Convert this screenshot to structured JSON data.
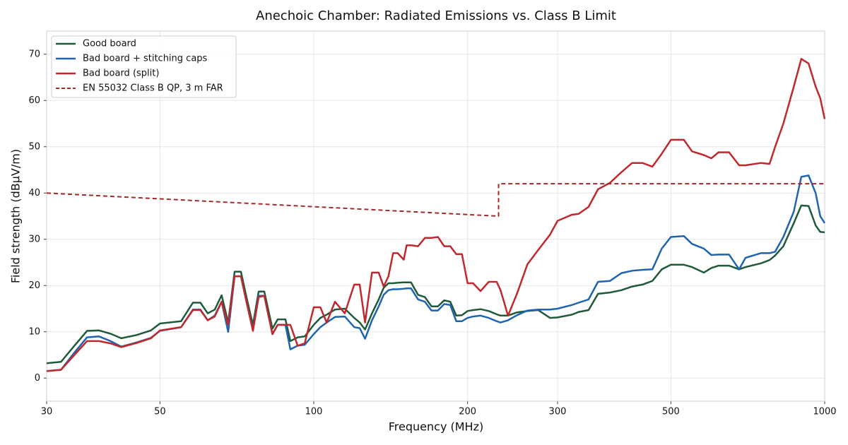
{
  "chart_data": {
    "type": "line",
    "title": "Anechoic Chamber: Radiated Emissions vs. Class B Limit",
    "x_label": "Frequency (MHz)",
    "y_label": "Field strength (dBµV/m)",
    "x_scale": "log",
    "grid": true,
    "legend": "upper left",
    "xlim": [
      30,
      1000
    ],
    "ylim": [
      -5,
      75
    ],
    "xticks": [
      30,
      50,
      100,
      200,
      300,
      500,
      1000
    ],
    "yticks": [
      0,
      10,
      20,
      30,
      40,
      50,
      60,
      70
    ],
    "x": [
      30,
      32,
      34,
      36,
      38,
      40,
      42,
      45,
      48,
      50,
      55,
      58,
      60,
      62,
      64,
      66,
      68,
      70,
      72,
      74,
      76,
      78,
      80,
      83,
      85,
      88,
      90,
      93,
      96,
      100,
      103,
      106,
      110,
      115,
      120,
      123,
      126,
      130,
      134,
      137,
      140,
      143,
      146,
      150,
      152,
      155,
      160,
      165,
      170,
      175,
      180,
      185,
      190,
      195,
      200,
      205,
      212,
      220,
      228,
      232,
      240,
      250,
      262,
      275,
      290,
      300,
      320,
      330,
      345,
      360,
      380,
      400,
      420,
      440,
      460,
      480,
      500,
      530,
      550,
      580,
      600,
      620,
      650,
      680,
      700,
      750,
      780,
      800,
      830,
      870,
      900,
      930,
      960,
      980,
      1000
    ],
    "series": [
      {
        "name": "Good board",
        "color": "#1f5a3a",
        "dashed": false,
        "values": [
          3.2,
          3.5,
          7,
          10.2,
          10.3,
          9.6,
          8.6,
          9.3,
          10.3,
          11.8,
          12.3,
          16.3,
          16.3,
          14,
          14.8,
          17.9,
          12,
          23,
          23,
          17,
          11.5,
          18.7,
          18.7,
          10.7,
          12.7,
          12.7,
          8,
          8.8,
          9,
          11.5,
          13,
          13.7,
          14.8,
          15,
          13,
          12,
          10.5,
          14,
          17,
          19.5,
          20.5,
          20.5,
          20.6,
          20.7,
          20.7,
          20.7,
          18,
          17.5,
          15.5,
          15.5,
          16.8,
          16.5,
          13.5,
          13.6,
          14.5,
          14.7,
          14.9,
          14.5,
          13.8,
          13.5,
          13.5,
          14.2,
          14.5,
          14.7,
          13,
          13.1,
          13.7,
          14.3,
          14.7,
          18.2,
          18.5,
          19,
          19.8,
          20.2,
          21,
          23.5,
          24.5,
          24.5,
          24,
          22.8,
          23.8,
          24.3,
          24.3,
          23.5,
          24,
          24.8,
          25.5,
          26.5,
          28.5,
          33.5,
          37.3,
          37.2,
          33,
          31.6,
          31.5
        ]
      },
      {
        "name": "Bad board + stitching caps",
        "color": "#1f64b0",
        "dashed": false,
        "values": [
          1.5,
          1.8,
          5.5,
          8.8,
          9,
          8,
          6.8,
          7.7,
          8.7,
          10.2,
          11,
          14.8,
          14.8,
          12.5,
          13.5,
          16.5,
          10,
          22,
          22,
          16,
          10.5,
          17.8,
          17.8,
          9.5,
          11.5,
          11.5,
          6.2,
          7,
          7.2,
          9.5,
          11,
          12,
          13.2,
          13.3,
          11,
          10.8,
          8.5,
          12.5,
          15.5,
          18,
          19,
          19.2,
          19.2,
          19.3,
          19.4,
          19.4,
          17,
          16.5,
          14.6,
          14.6,
          16,
          15.8,
          12.3,
          12.3,
          13,
          13.3,
          13.5,
          13,
          12.3,
          12,
          12.5,
          13.6,
          14.6,
          14.8,
          14.8,
          15,
          15.8,
          16.3,
          17,
          20.8,
          21,
          22.7,
          23.2,
          23.4,
          23.5,
          28,
          30.5,
          30.7,
          29,
          28,
          26.6,
          26.7,
          26.7,
          23.5,
          26,
          27,
          27,
          27.3,
          30.5,
          36,
          43.5,
          43.8,
          40,
          35,
          33.5
        ]
      },
      {
        "name": "Bad board (split)",
        "color": "#c0282d",
        "dashed": false,
        "values": [
          1.5,
          1.8,
          5,
          8,
          8,
          7.5,
          6.7,
          7.6,
          8.6,
          10.3,
          11,
          14.7,
          14.7,
          12.5,
          13.3,
          16.5,
          11.5,
          22,
          22,
          16,
          10.2,
          17.5,
          17.8,
          9.5,
          11.5,
          11.5,
          11.5,
          7,
          7.5,
          15.3,
          15.3,
          12,
          16.5,
          14,
          20.2,
          20.2,
          12,
          22.8,
          22.8,
          19.8,
          22,
          27,
          27,
          25.6,
          28.7,
          28.7,
          28.5,
          30.3,
          30.3,
          30.5,
          28.5,
          28.5,
          26.8,
          26.8,
          20.5,
          20.5,
          18.8,
          20.8,
          20.8,
          19,
          13.5,
          18.3,
          24.6,
          27.7,
          31,
          34,
          35.3,
          35.5,
          37,
          40.8,
          42.2,
          44.5,
          46.5,
          46.5,
          45.7,
          48.5,
          51.5,
          51.5,
          49,
          48.2,
          47.5,
          48.8,
          48.8,
          46,
          46,
          46.5,
          46.3,
          50,
          55,
          63,
          69,
          68,
          63,
          60.5,
          56
        ]
      },
      {
        "name": "EN 55032 Class B QP, 3 m FAR",
        "color": "#a52a2a",
        "dashed": true,
        "x": [
          30,
          230,
          230,
          1000
        ],
        "values": [
          40,
          35,
          42,
          42
        ]
      }
    ]
  }
}
